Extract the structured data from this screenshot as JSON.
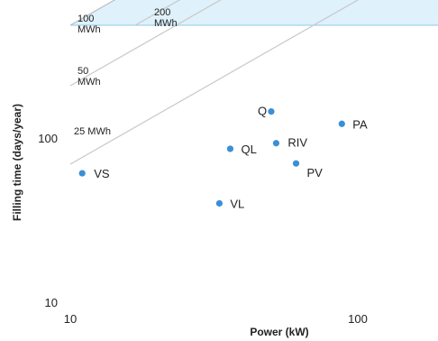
{
  "chart_data": {
    "type": "scatter",
    "xlabel": "Power (kW)",
    "ylabel": "Filling time (days/year)",
    "x_scale": "log",
    "y_scale": "log",
    "xlim": [
      10,
      200
    ],
    "ylim": [
      10,
      400
    ],
    "x_ticks": [
      {
        "value": 10,
        "label": "10"
      },
      {
        "value": 100,
        "label": "100"
      }
    ],
    "y_ticks": [
      {
        "value": 10,
        "label": "10"
      },
      {
        "value": 100,
        "label": "100"
      }
    ],
    "point_color": "#3a8fd6",
    "region_color": "#dff1fb",
    "region_edge_color": "#8ecbea",
    "line_color": "#c8c8c8",
    "points": [
      {
        "label": "Q",
        "x": 50,
        "y": 145
      },
      {
        "label": "PA",
        "x": 88,
        "y": 122
      },
      {
        "label": "RIV",
        "x": 52,
        "y": 93
      },
      {
        "label": "QL",
        "x": 36,
        "y": 86
      },
      {
        "label": "PV",
        "x": 61,
        "y": 70
      },
      {
        "label": "VS",
        "x": 11,
        "y": 61
      },
      {
        "label": "VL",
        "x": 33,
        "y": 40
      }
    ],
    "reference_lines": [
      {
        "label_lines": [
          "25 MWh"
        ],
        "energy_mwh": 25
      },
      {
        "label_lines": [
          "50",
          "MWh"
        ],
        "energy_mwh": 50
      },
      {
        "label_lines": [
          "100",
          "MWh"
        ],
        "energy_mwh": 100
      },
      {
        "label_lines": [
          "200",
          "MWh"
        ],
        "energy_mwh": 200
      }
    ],
    "shaded_region": {
      "description_from_chart": "above 100 MWh line",
      "lower_bound_mwh": 100
    },
    "grid": false
  }
}
